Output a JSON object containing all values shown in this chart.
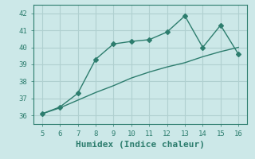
{
  "x": [
    5,
    6,
    7,
    8,
    9,
    10,
    11,
    12,
    13,
    14,
    15,
    16
  ],
  "y_upper": [
    36.1,
    36.5,
    37.3,
    39.3,
    40.2,
    40.35,
    40.45,
    40.9,
    41.85,
    40.0,
    41.3,
    39.6
  ],
  "y_lower": [
    36.1,
    36.45,
    36.9,
    37.35,
    37.75,
    38.2,
    38.55,
    38.85,
    39.1,
    39.45,
    39.75,
    40.0
  ],
  "line_color": "#2d7d6e",
  "bg_color": "#cce8e8",
  "grid_color": "#b0d0d0",
  "xlabel": "Humidex (Indice chaleur)",
  "ylim": [
    35.5,
    42.5
  ],
  "xlim": [
    4.5,
    16.5
  ],
  "yticks": [
    36,
    37,
    38,
    39,
    40,
    41,
    42
  ],
  "xticks": [
    5,
    6,
    7,
    8,
    9,
    10,
    11,
    12,
    13,
    14,
    15,
    16
  ],
  "marker_size": 4,
  "line_width": 1.0,
  "font_size": 6.5
}
